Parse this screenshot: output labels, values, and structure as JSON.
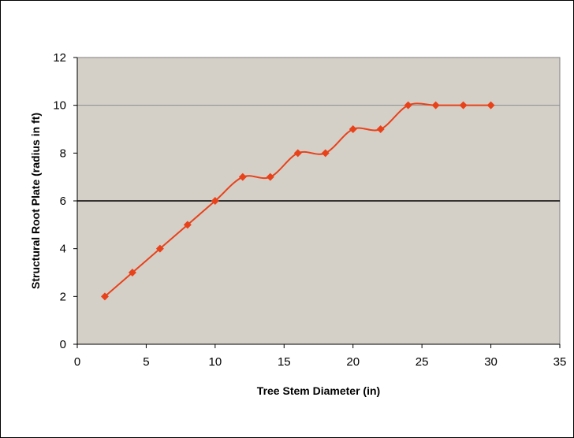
{
  "chart_data": {
    "type": "line",
    "title": "",
    "xlabel": "Tree Stem Diameter (in)",
    "ylabel": "Structural Root Plate (radius in ft)",
    "xlim": [
      0,
      35
    ],
    "ylim": [
      0,
      12
    ],
    "x_ticks": [
      0,
      5,
      10,
      15,
      20,
      25,
      30,
      35
    ],
    "y_ticks": [
      0,
      2,
      4,
      6,
      8,
      10,
      12
    ],
    "gridlines_y": [
      10
    ],
    "reference_line_y": 6,
    "plot_background": "#d4d0c8",
    "series": [
      {
        "color": "#e8421b",
        "marker": "diamond",
        "x": [
          2,
          4,
          6,
          8,
          10,
          12,
          14,
          16,
          18,
          20,
          22,
          24,
          26,
          28,
          30
        ],
        "y": [
          2,
          3,
          4,
          5,
          6,
          7,
          7,
          8,
          8,
          9,
          9,
          10,
          10,
          10,
          10
        ]
      }
    ]
  }
}
